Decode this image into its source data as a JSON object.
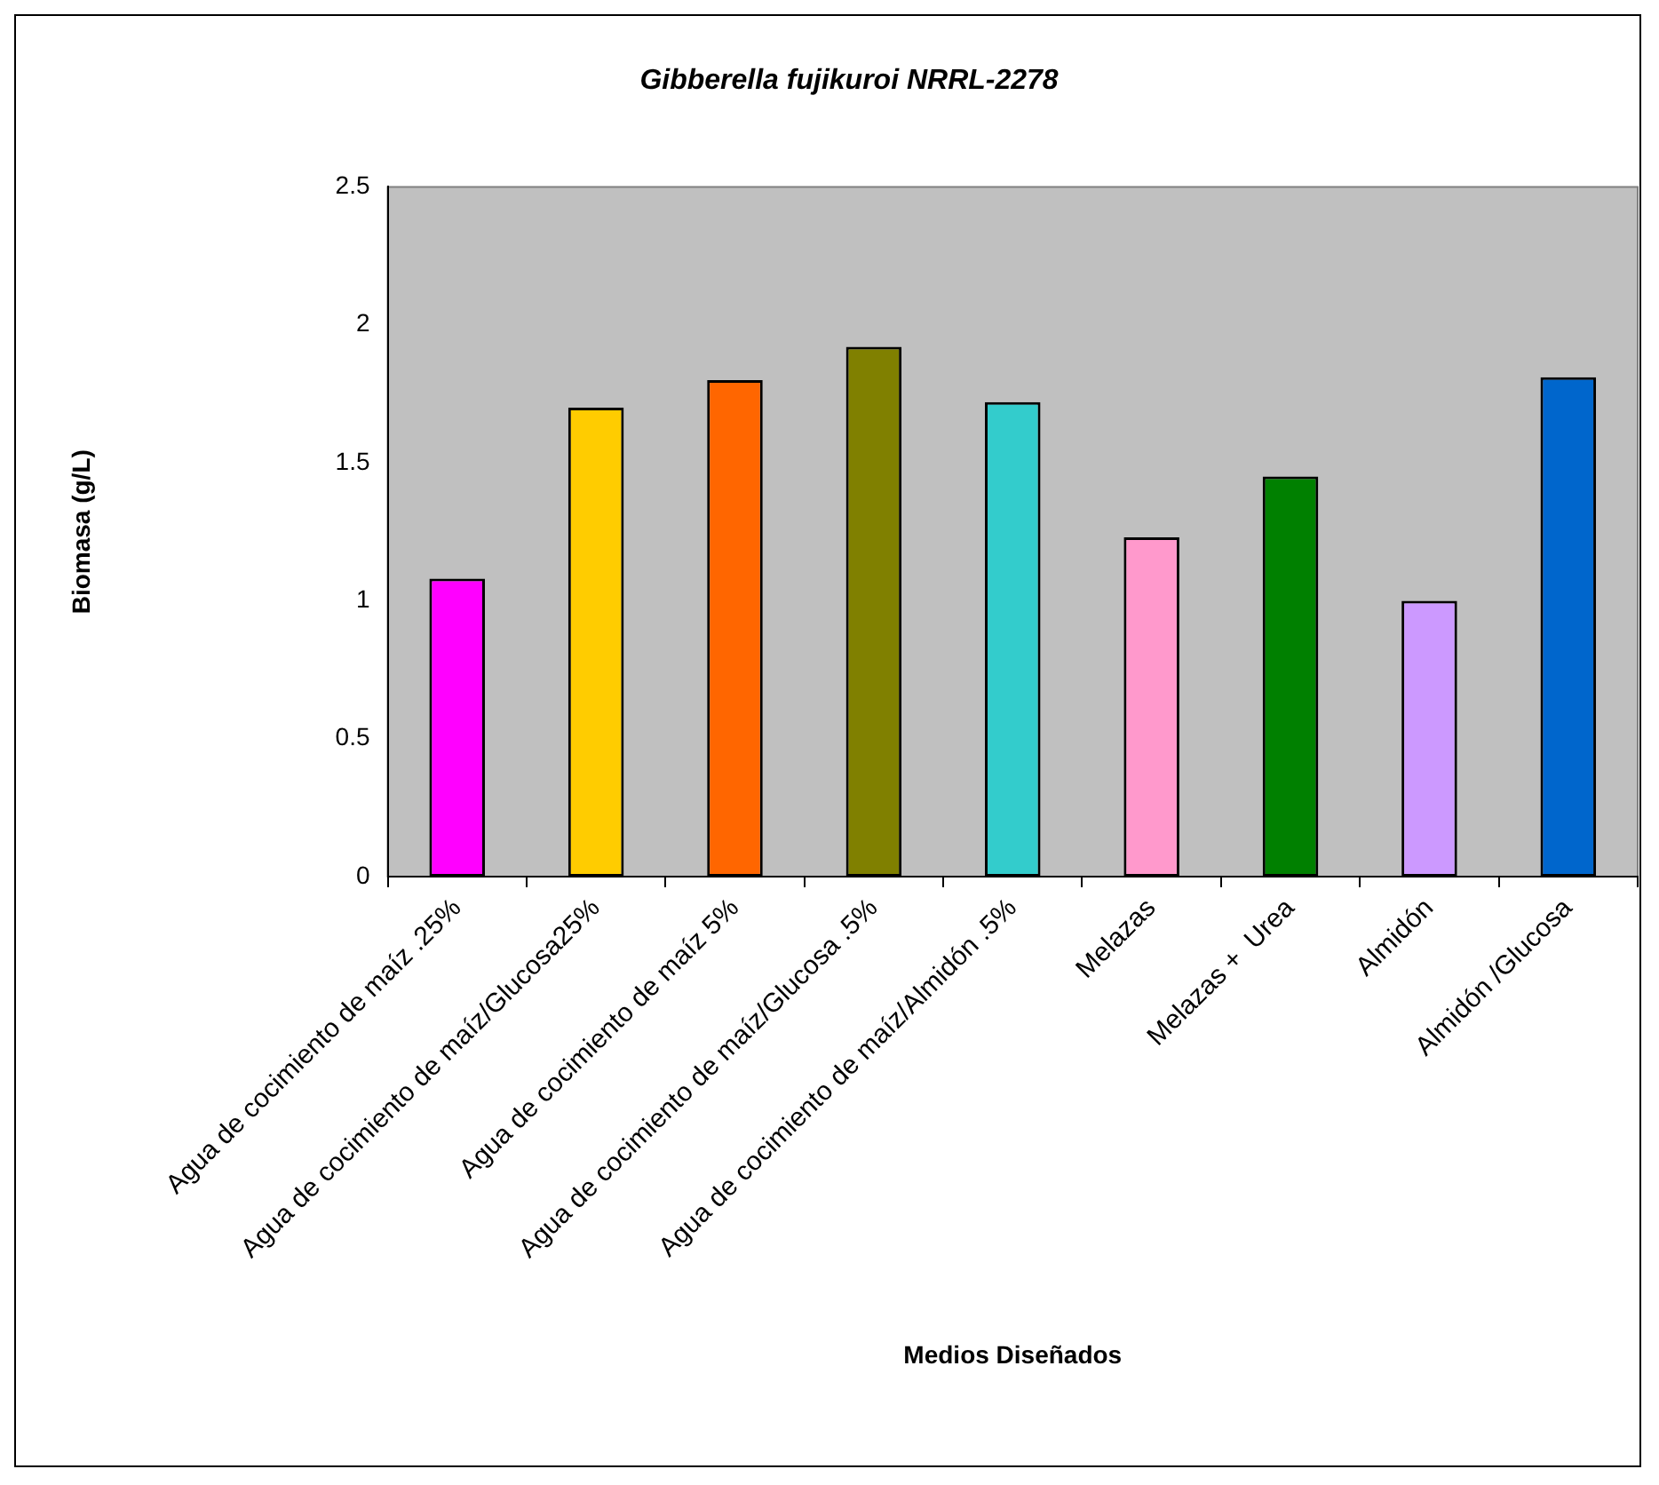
{
  "chart_data": {
    "type": "bar",
    "title": "Gibberella fujikuroi NRRL-2278",
    "xlabel": "Medios Diseñados",
    "ylabel": "Biomasa (g/L)",
    "categories": [
      "Agua de cocimiento de maíz .25%",
      "Agua de cocimiento de maíz/Glucosa25%",
      "Agua de cocimiento de maíz 5%",
      "Agua de cocimiento de maíz/Glucosa .5%",
      "Agua de cocimiento de maíz/Almidón .5%",
      "Melazas",
      "Melazas +  Urea",
      "Almidón",
      "Almidón /Glucosa"
    ],
    "values": [
      1.08,
      1.7,
      1.8,
      1.92,
      1.72,
      1.23,
      1.45,
      1.0,
      1.81
    ],
    "colors": [
      "#ff00ff",
      "#ffcc00",
      "#ff6600",
      "#808000",
      "#33cccc",
      "#ff99cc",
      "#008000",
      "#cc99ff",
      "#0066cc"
    ],
    "ylim": [
      0,
      2.5
    ],
    "yticks": [
      0,
      0.5,
      1,
      1.5,
      2,
      2.5
    ],
    "grid": false,
    "legend": false
  }
}
